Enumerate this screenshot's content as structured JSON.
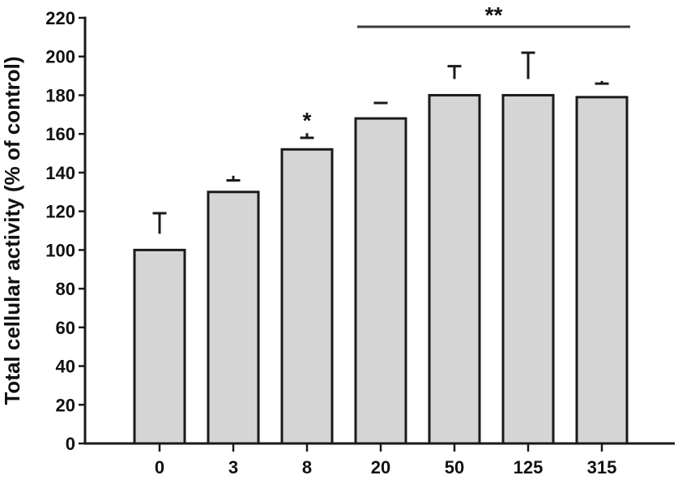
{
  "figure": {
    "background_color": "#ffffff"
  },
  "chart_data": {
    "type": "bar",
    "title": "",
    "xlabel": "",
    "ylabel": "Total cellular activity (% of control)",
    "categories": [
      "0",
      "3",
      "8",
      "20",
      "50",
      "125",
      "315"
    ],
    "values": [
      100,
      130,
      152,
      168,
      180,
      180,
      179
    ],
    "errors_upper": [
      19,
      6,
      6,
      8,
      15,
      22,
      7
    ],
    "ylim": [
      0,
      220
    ],
    "ytick_step": 20,
    "yticks": [
      0,
      20,
      40,
      60,
      80,
      100,
      120,
      140,
      160,
      180,
      200,
      220
    ],
    "grid": false,
    "legend": null,
    "annotations": [
      {
        "type": "star",
        "label": "*",
        "category": "8"
      },
      {
        "type": "bracket",
        "label": "**",
        "from_category": "20",
        "to_category": "315"
      }
    ],
    "colors": {
      "bar_fill": "#d5d5d5",
      "bar_stroke": "#1a1a1a",
      "axis": "#1a1a1a",
      "error_bar": "#1a1a1a",
      "bracket_line": "#3a3a3a",
      "text": "#111111",
      "background": "#ffffff"
    }
  }
}
